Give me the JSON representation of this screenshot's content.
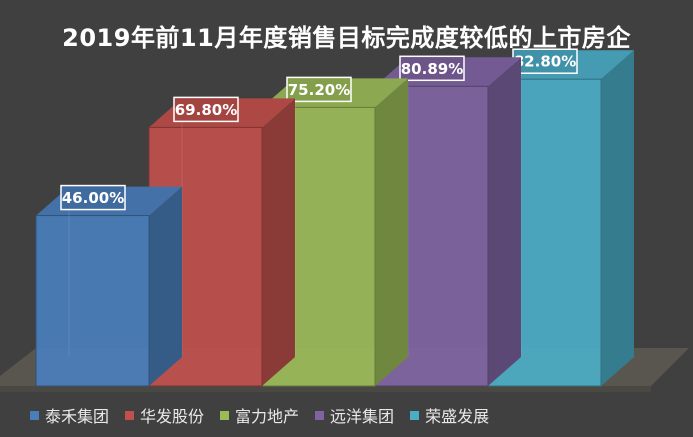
{
  "chart_data": {
    "type": "bar",
    "title": "2019年前11月年度销售目标完成度较低的上市房企",
    "categories": [
      "泰禾集团",
      "华发股份",
      "富力地产",
      "远洋集团",
      "荣盛发展"
    ],
    "values": [
      46.0,
      69.8,
      75.2,
      80.89,
      82.8
    ],
    "value_labels": [
      "46.00%",
      "69.80%",
      "75.20%",
      "80.89%",
      "82.80%"
    ],
    "unit": "%",
    "ylim": [
      0,
      100
    ],
    "grid": false,
    "legend": "bottom",
    "colors": [
      "#4a7ebb",
      "#c0504d",
      "#9bbb59",
      "#8064a2",
      "#4bacc6"
    ]
  }
}
